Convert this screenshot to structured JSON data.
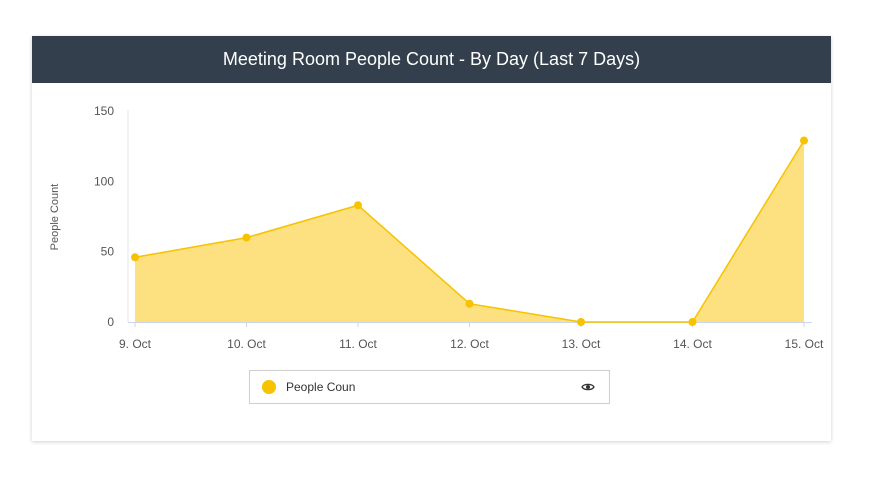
{
  "header": {
    "title": "Meeting Room People Count - By Day (Last 7 Days)"
  },
  "legend": {
    "label": "People Coun",
    "toggle_icon": "eye-icon"
  },
  "colors": {
    "series": "#f7c200",
    "fill": "#fde07f",
    "header_bg": "#333f4c"
  },
  "chart_data": {
    "type": "area",
    "title": "Meeting Room People Count - By Day (Last 7 Days)",
    "xlabel": "",
    "ylabel": "People Count",
    "categories": [
      "9. Oct",
      "10. Oct",
      "11. Oct",
      "12. Oct",
      "13. Oct",
      "14. Oct",
      "15. Oct"
    ],
    "series": [
      {
        "name": "People Coun",
        "values": [
          46,
          60,
          83,
          13,
          0,
          0,
          129
        ]
      }
    ],
    "yticks": [
      0,
      50,
      100,
      150
    ],
    "ylim": [
      0,
      150
    ],
    "grid": false,
    "legend": "bottom"
  }
}
